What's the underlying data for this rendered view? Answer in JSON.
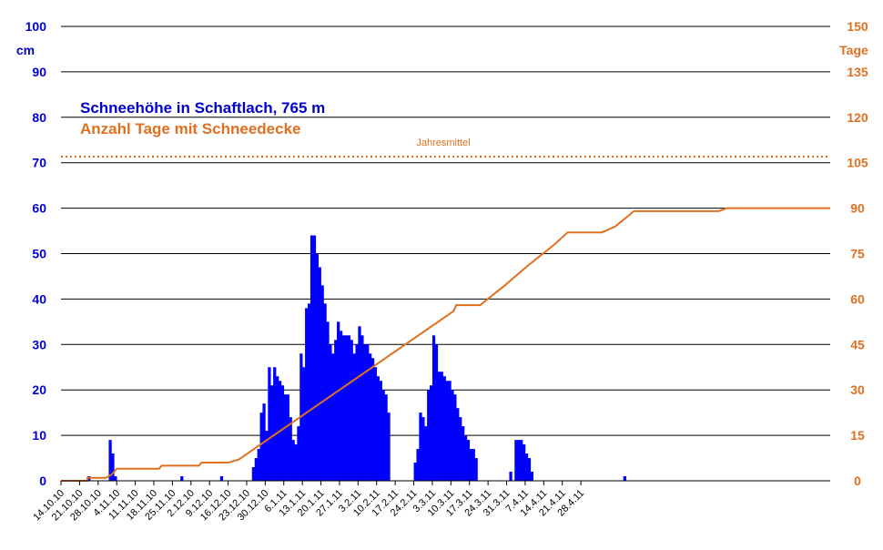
{
  "chart_data": {
    "type": "bar+line",
    "title_primary": "Schneehöhe in Schaftlach, 765 m",
    "title_secondary": "Anzahl Tage mit Schneedecke",
    "y_left_label": "cm",
    "y_right_label": "Tage",
    "y_left_range": [
      0,
      100
    ],
    "y_right_range": [
      0,
      150
    ],
    "y_left_ticks": [
      "0",
      "10",
      "20",
      "30",
      "40",
      "50",
      "60",
      "70",
      "80",
      "90",
      "100"
    ],
    "y_right_ticks": [
      "0",
      "15",
      "30",
      "45",
      "60",
      "75",
      "90",
      "105",
      "120",
      "135",
      "150"
    ],
    "grid": "horizontal",
    "x_tick_labels": [
      "14.10.10",
      "21.10.10",
      "28.10.10",
      "4.11.10",
      "11.11.10",
      "18.11.10",
      "25.11.10",
      "2.12.10",
      "9.12.10",
      "16.12.10",
      "23.12.10",
      "30.12.10",
      "6.1.11",
      "13.1.11",
      "20.1.11",
      "27.1.11",
      "3.2.11",
      "10.2.11",
      "17.2.11",
      "24.2.11",
      "3.3.11",
      "10.3.11",
      "17.3.11",
      "24.3.11",
      "31.3.11",
      "7.4.11",
      "14.4.11",
      "21.4.11",
      "28.4.11"
    ],
    "annotation": {
      "label": "Jahresmittel",
      "value_right_axis": 107
    },
    "colors": {
      "bars": "#0000ff",
      "line": "#e07020",
      "left_axis": "#0000cc",
      "right_axis": "#e07020",
      "grid": "#000000"
    },
    "series": [
      {
        "name": "Schneehöhe in Schaftlach, 765 m",
        "type": "bar",
        "axis": "left",
        "unit": "cm",
        "values": [
          0,
          0,
          0,
          0,
          0,
          0,
          0,
          0,
          0,
          0,
          1,
          0,
          0,
          0,
          0,
          0,
          0,
          0,
          9,
          6,
          1,
          0,
          0,
          0,
          0,
          0,
          0,
          0,
          0,
          0,
          0,
          0,
          0,
          0,
          0,
          0,
          0,
          0,
          0,
          0,
          0,
          0,
          0,
          0,
          0,
          1,
          0,
          0,
          0,
          0,
          0,
          0,
          0,
          0,
          0,
          0,
          0,
          0,
          0,
          0,
          1,
          0,
          0,
          0,
          0,
          0,
          0,
          0,
          0,
          0,
          0,
          0,
          3,
          5,
          7,
          15,
          17,
          11,
          25,
          21,
          25,
          23,
          22,
          21,
          19,
          19,
          14,
          9,
          8,
          12,
          28,
          25,
          38,
          39,
          54,
          54,
          50,
          47,
          43,
          39,
          35,
          30,
          28,
          31,
          35,
          33,
          32,
          32,
          32,
          31,
          28,
          30,
          34,
          32,
          30,
          30,
          28,
          27,
          25,
          23,
          22,
          20,
          19,
          15,
          0,
          0,
          0,
          0,
          0,
          0,
          0,
          0,
          0,
          4,
          7,
          15,
          14,
          12,
          20,
          21,
          32,
          30,
          24,
          24,
          23,
          22,
          22,
          20,
          19,
          16,
          14,
          12,
          10,
          9,
          7,
          7,
          5,
          0,
          0,
          0,
          0,
          0,
          0,
          0,
          0,
          0,
          0,
          0,
          0,
          2,
          0,
          9,
          9,
          9,
          8,
          6,
          5,
          2,
          0,
          0,
          0,
          0,
          0,
          0,
          0,
          0,
          0,
          0,
          0,
          0,
          0,
          0,
          0,
          0,
          0,
          0,
          0,
          0,
          0,
          0,
          0,
          0,
          0,
          0,
          0,
          0,
          0,
          0,
          0,
          0,
          0,
          0,
          1
        ]
      },
      {
        "name": "Anzahl Tage mit Schneedecke",
        "type": "line",
        "axis": "right",
        "unit": "Tage",
        "points": [
          [
            0,
            0
          ],
          [
            10,
            0
          ],
          [
            10,
            1
          ],
          [
            17,
            1
          ],
          [
            19,
            2
          ],
          [
            20,
            3
          ],
          [
            21,
            4
          ],
          [
            37,
            4
          ],
          [
            38,
            5
          ],
          [
            52,
            5
          ],
          [
            53,
            6
          ],
          [
            63,
            6
          ],
          [
            67,
            7
          ],
          [
            148,
            56
          ],
          [
            149,
            58
          ],
          [
            158,
            58
          ],
          [
            168,
            65
          ],
          [
            176,
            71
          ],
          [
            186,
            78
          ],
          [
            191,
            82
          ],
          [
            204,
            82
          ],
          [
            209,
            84
          ],
          [
            216,
            89
          ],
          [
            248,
            89
          ],
          [
            251,
            90
          ],
          [
            290,
            90
          ]
        ]
      }
    ]
  }
}
